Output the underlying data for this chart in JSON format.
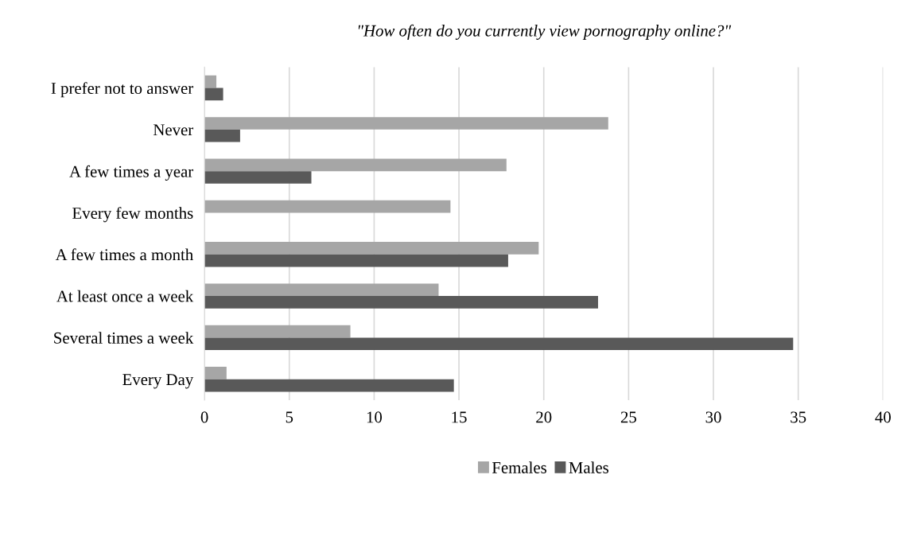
{
  "chart_data": {
    "type": "bar",
    "orientation": "horizontal",
    "title": "\"How often do you currently view pornography online?\"",
    "categories": [
      "I prefer not to answer",
      "Never",
      "A few times a year",
      "Every few months",
      "A few times a month",
      "At least once a week",
      "Several times a week",
      "Every Day"
    ],
    "series": [
      {
        "name": "Females",
        "color": "#a6a6a6",
        "values": [
          0.7,
          23.8,
          17.8,
          14.5,
          19.7,
          13.8,
          8.6,
          1.3
        ]
      },
      {
        "name": "Males",
        "color": "#595959",
        "values": [
          1.1,
          2.1,
          6.3,
          0,
          17.9,
          23.2,
          34.7,
          14.7
        ]
      }
    ],
    "xlim": [
      0,
      40
    ],
    "xticks": [
      0,
      5,
      10,
      15,
      20,
      25,
      30,
      35,
      40
    ],
    "grid": "x",
    "legend": "bottom"
  }
}
